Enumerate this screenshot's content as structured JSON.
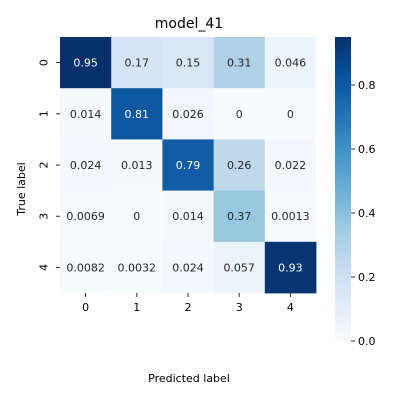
{
  "chart_data": {
    "type": "heatmap",
    "title": "model_41",
    "xlabel": "Predicted label",
    "ylabel": "True label",
    "x_categories": [
      "0",
      "1",
      "2",
      "3",
      "4"
    ],
    "y_categories": [
      "0",
      "1",
      "2",
      "3",
      "4"
    ],
    "values": [
      [
        0.95,
        0.17,
        0.15,
        0.31,
        0.046
      ],
      [
        0.014,
        0.81,
        0.026,
        0,
        0
      ],
      [
        0.024,
        0.013,
        0.79,
        0.26,
        0.022
      ],
      [
        0.0069,
        0,
        0.014,
        0.37,
        0.0013
      ],
      [
        0.0082,
        0.0032,
        0.024,
        0.057,
        0.93
      ]
    ],
    "labels": [
      [
        "0.95",
        "0.17",
        "0.15",
        "0.31",
        "0.046"
      ],
      [
        "0.014",
        "0.81",
        "0.026",
        "0",
        "0"
      ],
      [
        "0.024",
        "0.013",
        "0.79",
        "0.26",
        "0.022"
      ],
      [
        "0.0069",
        "0",
        "0.014",
        "0.37",
        "0.0013"
      ],
      [
        "0.0082",
        "0.0032",
        "0.024",
        "0.057",
        "0.93"
      ]
    ],
    "colormap": "Blues",
    "vmin": 0,
    "vmax": 0.95,
    "colorbar_ticks": [
      "0.0",
      "0.2",
      "0.4",
      "0.6",
      "0.8"
    ]
  }
}
